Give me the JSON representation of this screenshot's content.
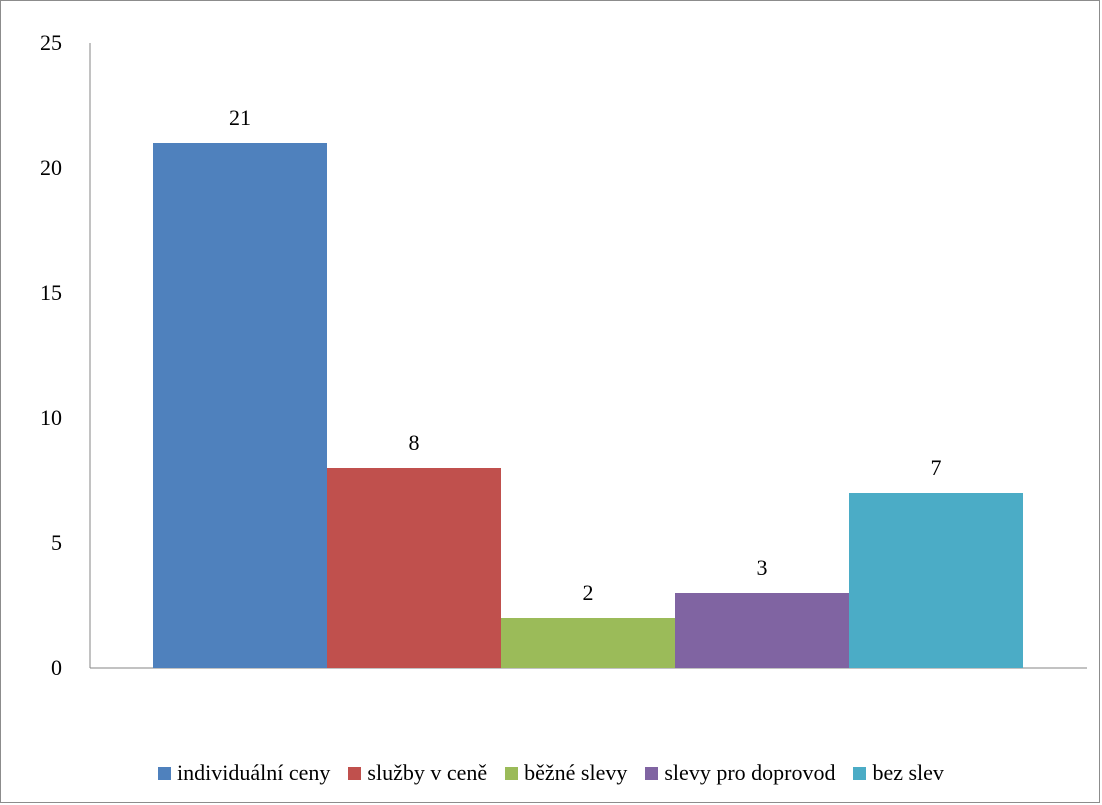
{
  "chart_data": {
    "type": "bar",
    "title": "",
    "xlabel": "",
    "ylabel": "",
    "ylim": [
      0,
      25
    ],
    "yticks": [
      0,
      5,
      10,
      15,
      20,
      25
    ],
    "grid": false,
    "legend_position": "bottom",
    "series": [
      {
        "name": "individuální ceny",
        "value": 21,
        "color": "#4F81BD"
      },
      {
        "name": "služby v ceně",
        "value": 8,
        "color": "#C0504D"
      },
      {
        "name": "běžné slevy",
        "value": 2,
        "color": "#9BBB59"
      },
      {
        "name": "slevy pro doprovod",
        "value": 3,
        "color": "#8064A2"
      },
      {
        "name": "bez slev",
        "value": 7,
        "color": "#4BACC6"
      }
    ]
  }
}
